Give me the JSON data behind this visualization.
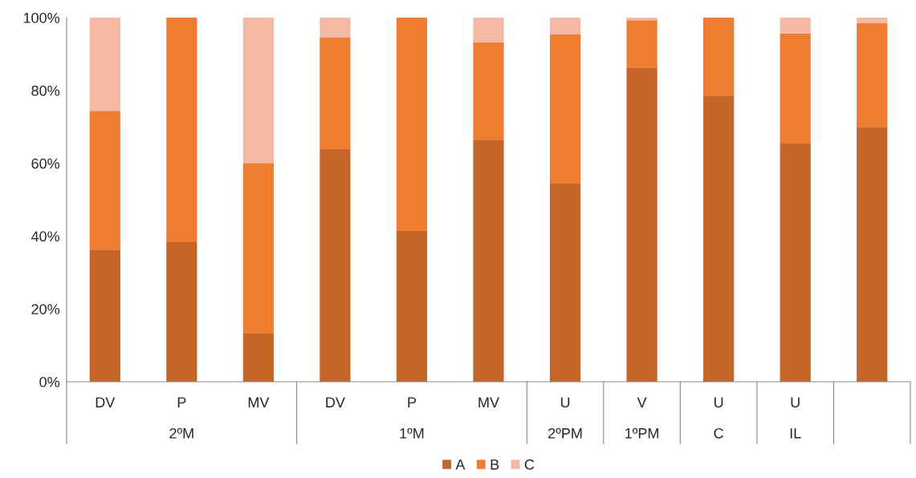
{
  "chart_data": {
    "type": "bar",
    "stacked": true,
    "categories": [
      "DV",
      "P",
      "MV",
      "DV",
      "P",
      "MV",
      "U",
      "V",
      "U",
      "U",
      null
    ],
    "annotations": [
      "2ºM",
      "1ºM",
      "2ºPM",
      "1ºPM",
      "C",
      "IL"
    ],
    "series": [
      {
        "name": "A",
        "color": "#c4652a",
        "values": [
          36.3,
          38.3,
          13.2,
          63.9,
          41.4,
          66.3,
          54.4,
          86.1,
          78.6,
          65.4,
          70.0
        ]
      },
      {
        "name": "B",
        "color": "#ed7d31",
        "values": [
          38.1,
          61.7,
          46.9,
          30.6,
          58.6,
          26.9,
          41.0,
          13.2,
          21.4,
          30.2,
          28.5
        ]
      },
      {
        "name": "C",
        "color": "#f4b9a5",
        "values": [
          25.6,
          0,
          39.9,
          5.5,
          0,
          6.8,
          4.6,
          0.7,
          0,
          4.4,
          1.5
        ]
      }
    ],
    "ylim": [
      0,
      100
    ],
    "yticks": [
      {
        "value": 0,
        "label": "0%"
      },
      {
        "value": 20,
        "label": "20%"
      },
      {
        "value": 40,
        "label": "40%"
      },
      {
        "value": 60,
        "label": "60%"
      },
      {
        "value": 80,
        "label": "80%"
      },
      {
        "value": 100,
        "label": "100%"
      }
    ],
    "grid": false,
    "legend": "bottom"
  }
}
